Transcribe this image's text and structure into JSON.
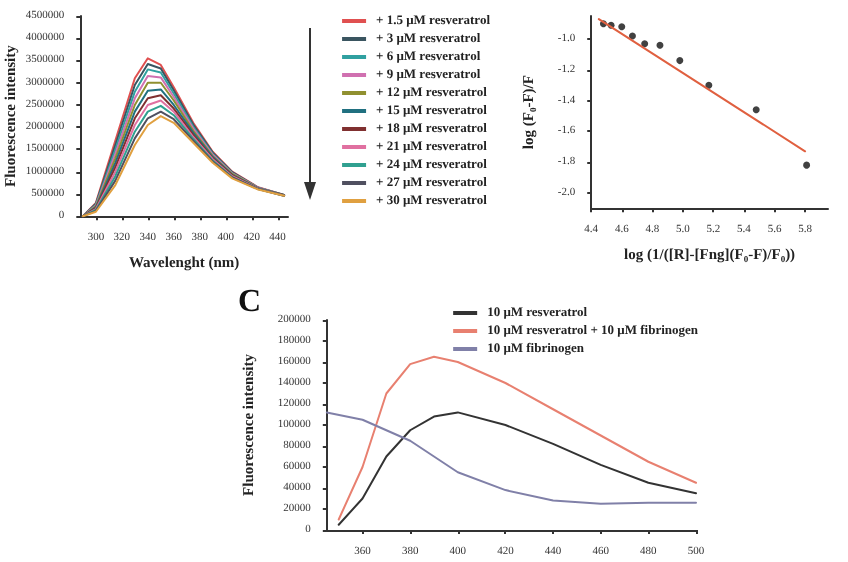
{
  "chart_data": [
    {
      "type": "line",
      "xlabel": "Wavelenght (nm)",
      "ylabel": "Fluorescence intensity",
      "x": [
        290,
        300,
        315,
        330,
        340,
        350,
        360,
        375,
        390,
        405,
        425,
        445
      ],
      "xlim": [
        288,
        448
      ],
      "xticks": [
        300,
        320,
        340,
        360,
        380,
        400,
        420,
        440
      ],
      "ylim": [
        0,
        4500000
      ],
      "yticks": [
        0,
        500000,
        1000000,
        1500000,
        2000000,
        2500000,
        3000000,
        3500000,
        4000000,
        4500000
      ],
      "grid": false,
      "legend": "right",
      "marker": "none",
      "series": [
        {
          "name": "+ 1.5 μM resveratrol",
          "color": "#e05050",
          "values": [
            0,
            300000,
            1700000,
            3100000,
            3550000,
            3400000,
            2900000,
            2100000,
            1450000,
            1000000,
            650000,
            480000
          ]
        },
        {
          "name": "+ 3 μM resveratrol",
          "color": "#3a5560",
          "values": [
            0,
            280000,
            1600000,
            2950000,
            3420000,
            3320000,
            2830000,
            2060000,
            1430000,
            990000,
            640000,
            480000
          ]
        },
        {
          "name": "+ 6 μM resveratrol",
          "color": "#30a0a0",
          "values": [
            0,
            260000,
            1500000,
            2800000,
            3300000,
            3230000,
            2760000,
            2010000,
            1400000,
            970000,
            640000,
            480000
          ]
        },
        {
          "name": "+ 9 μM resveratrol",
          "color": "#d070b0",
          "values": [
            0,
            240000,
            1400000,
            2650000,
            3150000,
            3120000,
            2680000,
            1970000,
            1380000,
            960000,
            640000,
            470000
          ]
        },
        {
          "name": "+ 12 μM resveratrol",
          "color": "#909030",
          "values": [
            0,
            220000,
            1300000,
            2500000,
            3000000,
            3000000,
            2600000,
            1920000,
            1350000,
            950000,
            630000,
            470000
          ]
        },
        {
          "name": "+ 15 μM resveratrol",
          "color": "#207080",
          "values": [
            0,
            200000,
            1200000,
            2350000,
            2820000,
            2850000,
            2500000,
            1880000,
            1330000,
            930000,
            630000,
            470000
          ]
        },
        {
          "name": "+ 18 μM resveratrol",
          "color": "#803030",
          "values": [
            0,
            180000,
            1100000,
            2200000,
            2650000,
            2720000,
            2420000,
            1830000,
            1300000,
            920000,
            620000,
            470000
          ]
        },
        {
          "name": "+ 21 μM resveratrol",
          "color": "#e070a0",
          "values": [
            0,
            160000,
            1000000,
            2050000,
            2500000,
            2600000,
            2350000,
            1780000,
            1280000,
            900000,
            620000,
            460000
          ]
        },
        {
          "name": "+ 24 μM resveratrol",
          "color": "#30a090",
          "values": [
            0,
            140000,
            900000,
            1900000,
            2350000,
            2480000,
            2270000,
            1740000,
            1250000,
            880000,
            610000,
            460000
          ]
        },
        {
          "name": "+ 27 μM resveratrol",
          "color": "#505060",
          "values": [
            0,
            120000,
            800000,
            1750000,
            2200000,
            2350000,
            2180000,
            1700000,
            1230000,
            870000,
            610000,
            460000
          ]
        },
        {
          "name": "+ 30 μM resveratrol",
          "color": "#e0a040",
          "values": [
            0,
            100000,
            700000,
            1600000,
            2050000,
            2250000,
            2100000,
            1650000,
            1200000,
            850000,
            600000,
            460000
          ]
        }
      ]
    },
    {
      "type": "scatter",
      "xlabel": "log (1/([R]-[Fng](F₀-F)/F₀))",
      "ylabel": "log (F₀-F)/F",
      "xlim": [
        4.4,
        5.95
      ],
      "xticks": [
        4.4,
        4.6,
        4.8,
        {
          "value": 5,
          "label": "5.0"
        },
        5.2,
        5.4,
        5.6,
        5.8
      ],
      "ylim": [
        -2.1,
        -0.85
      ],
      "yticks": [
        {
          "value": -2,
          "label": "-2.0"
        },
        -1.8,
        -1.6,
        -1.4,
        -1.2,
        {
          "value": -1,
          "label": "-1.0"
        }
      ],
      "grid": false,
      "legend": false,
      "series": [
        {
          "marker": "circle",
          "color": "#111111",
          "x": [
            4.48,
            4.53,
            4.6,
            4.67,
            4.75,
            4.85,
            4.98,
            5.17,
            5.48,
            5.81
          ],
          "values": [
            -0.9,
            -0.91,
            -0.92,
            -0.98,
            -1.03,
            -1.04,
            -1.14,
            -1.3,
            -1.46,
            -1.82
          ]
        },
        {
          "type": "line",
          "marker": "none",
          "color": "#e06040",
          "x": [
            4.45,
            5.8
          ],
          "values": [
            -0.87,
            -1.73
          ]
        }
      ]
    },
    {
      "type": "line",
      "title": "C",
      "ylabel": "Fluorescence intensity",
      "xlim": [
        345,
        500
      ],
      "xticks": [
        360,
        380,
        400,
        420,
        440,
        460,
        480,
        500
      ],
      "ylim": [
        0,
        200000
      ],
      "yticks": [
        0,
        20000,
        40000,
        60000,
        80000,
        100000,
        120000,
        140000,
        160000,
        180000,
        200000
      ],
      "grid": false,
      "legend": "top right",
      "marker": "none",
      "series": [
        {
          "name": "10 μM resveratrol",
          "color": "#333333",
          "x": [
            350,
            360,
            370,
            380,
            390,
            400,
            420,
            440,
            460,
            480,
            500
          ],
          "values": [
            5000,
            30000,
            70000,
            95000,
            108000,
            112000,
            100000,
            82000,
            62000,
            45000,
            35000
          ]
        },
        {
          "name": "10 μM resveratrol + 10 μM fibrinogen",
          "color": "#e88070",
          "x": [
            350,
            360,
            370,
            380,
            390,
            400,
            420,
            440,
            460,
            480,
            500
          ],
          "values": [
            10000,
            60000,
            130000,
            158000,
            165000,
            160000,
            140000,
            115000,
            90000,
            65000,
            45000
          ]
        },
        {
          "name": "10 μM fibrinogen",
          "color": "#8080a8",
          "x": [
            345,
            360,
            380,
            400,
            420,
            440,
            460,
            480,
            500
          ],
          "values": [
            112000,
            105000,
            85000,
            55000,
            38000,
            28000,
            25000,
            26000,
            26000
          ]
        }
      ]
    }
  ]
}
